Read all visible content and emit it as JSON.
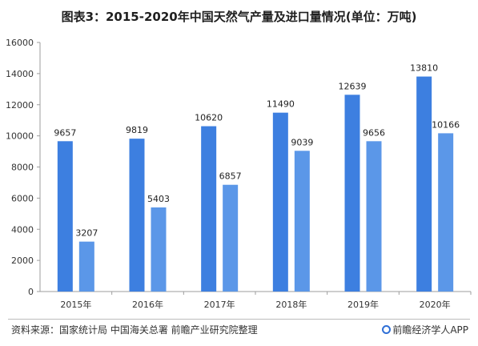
{
  "title": "图表3：2015-2020年中国天然气产量及进口量情况(单位：万吨)",
  "source": "资料来源：国家统计局 中国海关总署 前瞻产业研究院整理",
  "brand": "前瞻经济学人APP",
  "colors": {
    "series1": "#3d7fe0",
    "series2": "#5b97e8",
    "axis": "#9e9e9e"
  },
  "chart_data": {
    "type": "bar",
    "categories": [
      "2015年",
      "2016年",
      "2017年",
      "2018年",
      "2019年",
      "2020年"
    ],
    "series": [
      {
        "values": [
          9657,
          9819,
          10620,
          11490,
          12639,
          13810
        ]
      },
      {
        "values": [
          3207,
          5403,
          6857,
          9039,
          9656,
          10166
        ]
      }
    ],
    "ylim": [
      0,
      16000
    ],
    "yticks": [
      0,
      2000,
      4000,
      6000,
      8000,
      10000,
      12000,
      14000,
      16000
    ],
    "grid": false,
    "legend": "none"
  }
}
